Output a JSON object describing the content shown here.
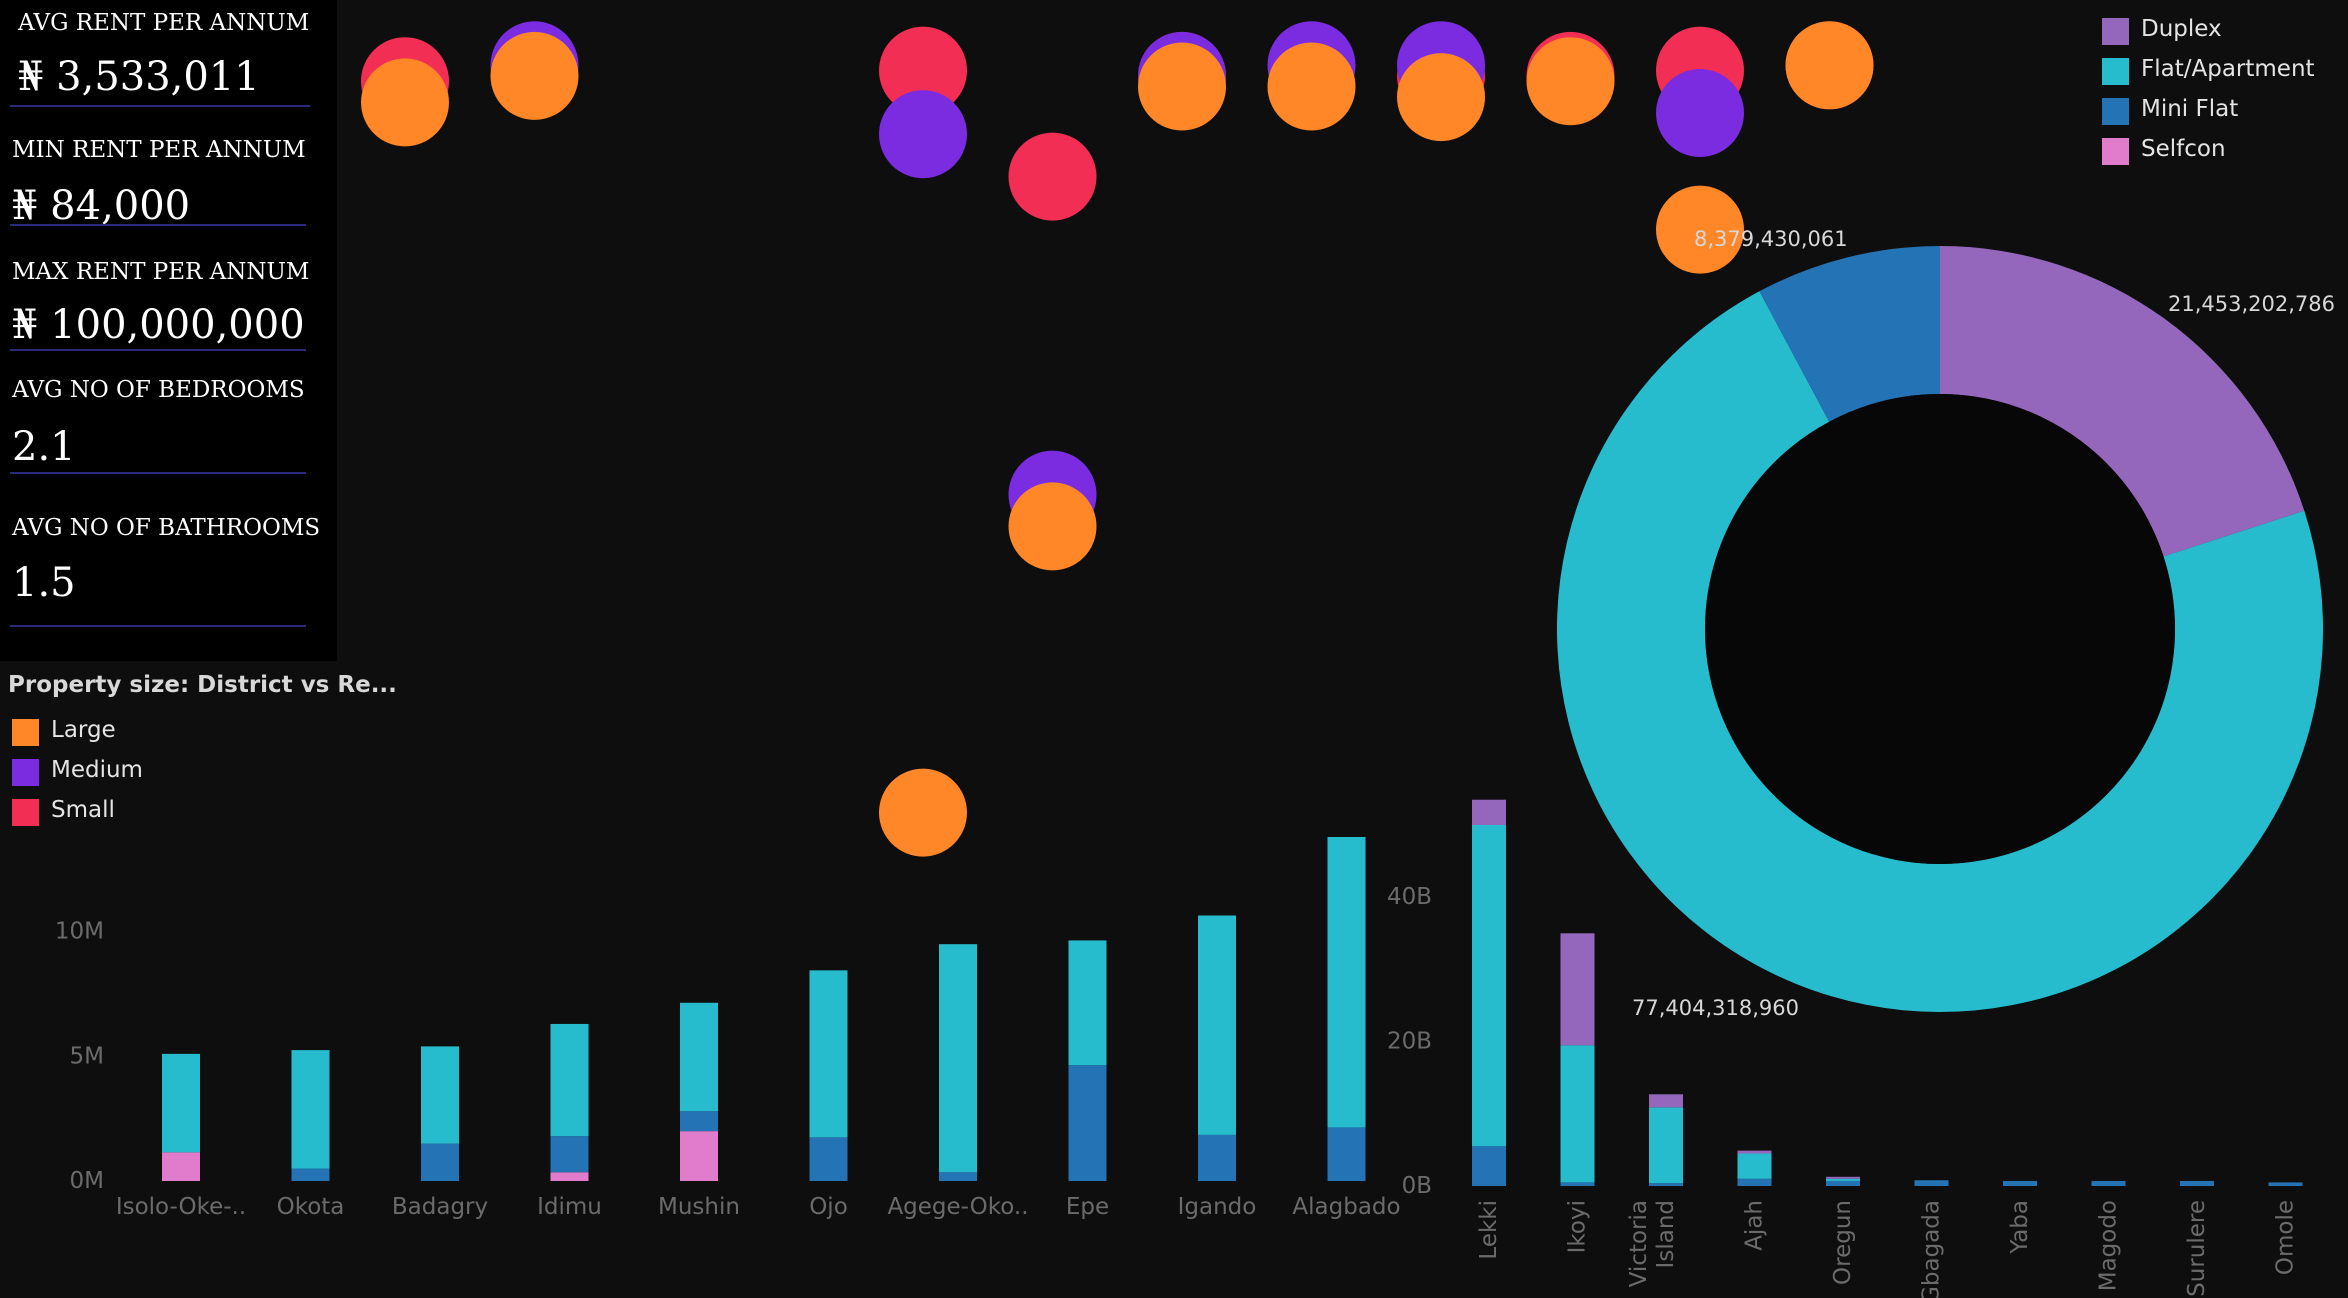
{
  "kpis": [
    {
      "label": "AVG RENT PER ANNUM",
      "value": "₦ 3,533,011"
    },
    {
      "label": "MIN RENT PER ANNUM",
      "value": "₦ 84,000"
    },
    {
      "label": "MAX RENT PER ANNUM",
      "value": "₦ 100,000,000"
    },
    {
      "label": "AVG NO OF BEDROOMS",
      "value": "2.1"
    },
    {
      "label": "AVG NO OF BATHROOMS",
      "value": "1.5"
    }
  ],
  "size_legend": {
    "title": "Property size: District vs Re...",
    "items": [
      {
        "label": "Large",
        "color": "#ff8728"
      },
      {
        "label": "Medium",
        "color": "#7b2be0"
      },
      {
        "label": "Small",
        "color": "#f22e55"
      }
    ]
  },
  "type_legend": {
    "items": [
      {
        "label": "Duplex",
        "color": "#9467bd"
      },
      {
        "label": "Flat/Apartment",
        "color": "#26bccd"
      },
      {
        "label": "Mini Flat",
        "color": "#2473b4"
      },
      {
        "label": "Selfcon",
        "color": "#e07ccb"
      }
    ]
  },
  "chart_data": [
    {
      "type": "scatter",
      "title": "",
      "categories": [
        "Isolo-Oke-..",
        "Okota",
        "Badagry",
        "Idimu",
        "Mushin",
        "Ojo",
        "Agege-Oko..",
        "Epe",
        "Igando",
        "Alagbado",
        "Lekki",
        "Ikoyi"
      ],
      "series": [
        {
          "name": "Small",
          "color": "#f22e55",
          "points": [
            {
              "category": "Isolo-Oke-..",
              "level": 0.98
            },
            {
              "category": "Mushin",
              "level": 0.99
            },
            {
              "category": "Ojo",
              "level": 0.89
            },
            {
              "category": "Agege-Oko..",
              "level": 0.985
            },
            {
              "category": "Igando",
              "level": 0.985
            },
            {
              "category": "Alagbado",
              "level": 0.985
            },
            {
              "category": "Lekki",
              "level": 0.99
            },
            {
              "category": "Ikoyi",
              "level": 0.995
            }
          ]
        },
        {
          "name": "Medium",
          "color": "#7b2be0",
          "points": [
            {
              "category": "Okota",
              "level": 0.995
            },
            {
              "category": "Mushin",
              "level": 0.93
            },
            {
              "category": "Ojo",
              "level": 0.59
            },
            {
              "category": "Agege-Oko..",
              "level": 0.985
            },
            {
              "category": "Epe",
              "level": 0.995
            },
            {
              "category": "Igando",
              "level": 0.995
            },
            {
              "category": "Lekki",
              "level": 0.95
            }
          ]
        },
        {
          "name": "Large",
          "color": "#ff8728",
          "points": [
            {
              "category": "Isolo-Oke-..",
              "level": 0.96
            },
            {
              "category": "Okota",
              "level": 0.985
            },
            {
              "category": "Mushin",
              "level": 0.29
            },
            {
              "category": "Ojo",
              "level": 0.56
            },
            {
              "category": "Agege-Oko..",
              "level": 0.975
            },
            {
              "category": "Epe",
              "level": 0.975
            },
            {
              "category": "Igando",
              "level": 0.965
            },
            {
              "category": "Alagbado",
              "level": 0.98
            },
            {
              "category": "Lekki",
              "level": 0.84
            },
            {
              "category": "Ikoyi",
              "level": 0.995
            }
          ]
        }
      ]
    },
    {
      "type": "bar",
      "stacked": true,
      "categories": [
        "Isolo-Oke-..",
        "Okota",
        "Badagry",
        "Idimu",
        "Mushin",
        "Ojo",
        "Agege-Oko..",
        "Epe",
        "Igando",
        "Alagbado"
      ],
      "ylabel": "",
      "ylim": [
        0,
        14000000
      ],
      "yticks": [
        {
          "value": 0,
          "label": "0M"
        },
        {
          "value": 5000000,
          "label": "5M"
        },
        {
          "value": 10000000,
          "label": "10M"
        }
      ],
      "series": [
        {
          "name": "Selfcon",
          "color": "#e07ccb",
          "values": [
            1150000,
            0,
            0,
            350000,
            2000000,
            0,
            0,
            0,
            0,
            0
          ]
        },
        {
          "name": "Mini Flat",
          "color": "#2473b4",
          "values": [
            0,
            500000,
            1500000,
            1450000,
            800000,
            1750000,
            350000,
            4650000,
            1850000,
            2150000
          ]
        },
        {
          "name": "Flat/Apartment",
          "color": "#26bccd",
          "values": [
            3950000,
            4750000,
            3900000,
            4500000,
            4350000,
            6700000,
            9150000,
            5000000,
            8800000,
            11650000
          ]
        },
        {
          "name": "Duplex",
          "color": "#9467bd",
          "values": [
            0,
            0,
            0,
            0,
            0,
            0,
            0,
            0,
            0,
            0
          ]
        }
      ]
    },
    {
      "type": "bar",
      "stacked": true,
      "categories": [
        "Lekki",
        "Ikoyi",
        "Victoria Island",
        "Ajah",
        "Oregun",
        "Gbagada",
        "Yaba",
        "Magodo",
        "Surulere",
        "Omole"
      ],
      "ylim": [
        0,
        50000000000
      ],
      "yticks": [
        {
          "value": 0,
          "label": "0B"
        },
        {
          "value": 20000000000,
          "label": "20B"
        },
        {
          "value": 40000000000,
          "label": "40B"
        }
      ],
      "series": [
        {
          "name": "Selfcon",
          "color": "#e07ccb",
          "values": [
            0,
            0,
            0,
            0,
            0,
            0,
            0,
            0,
            0,
            0
          ]
        },
        {
          "name": "Mini Flat",
          "color": "#2473b4",
          "values": [
            5500000000,
            500000000,
            400000000,
            1000000000,
            700000000,
            800000000,
            700000000,
            700000000,
            700000000,
            500000000
          ]
        },
        {
          "name": "Flat/Apartment",
          "color": "#26bccd",
          "values": [
            44500000000,
            19000000000,
            10500000000,
            3500000000,
            300000000,
            0,
            0,
            0,
            0,
            0
          ]
        },
        {
          "name": "Duplex",
          "color": "#9467bd",
          "values": [
            3500000000,
            15500000000,
            1800000000,
            400000000,
            200000000,
            0,
            0,
            0,
            0,
            0
          ]
        }
      ]
    },
    {
      "type": "pie",
      "donut": true,
      "series": [
        {
          "name": "Duplex",
          "color": "#9467bd",
          "value": 21453202786,
          "label": "21,453,202,786"
        },
        {
          "name": "Flat/Apartment",
          "color": "#26bccd",
          "value": 77404318960,
          "label": "77,404,318,960"
        },
        {
          "name": "Mini Flat",
          "color": "#2473b4",
          "value": 8379430061,
          "label": "8,379,430,061"
        }
      ]
    }
  ]
}
